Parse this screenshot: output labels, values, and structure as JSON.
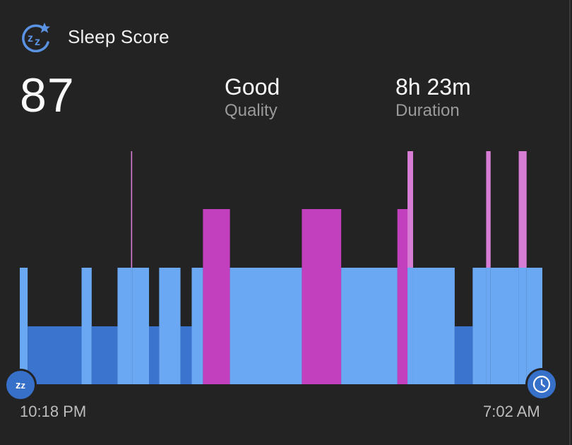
{
  "header": {
    "title": "Sleep Score",
    "icon": "sleep-zz-star-icon"
  },
  "score": "87",
  "metrics": [
    {
      "value": "Good",
      "label": "Quality"
    },
    {
      "value": "8h 23m",
      "label": "Duration"
    }
  ],
  "time_axis": {
    "start": "10:18 PM",
    "end": "7:02 AM"
  },
  "badges": {
    "start_icon": "zz-icon",
    "end_icon": "clock-icon"
  },
  "colors": {
    "background": "#232323",
    "deep": "#3a74ce",
    "light": "#6aa8f4",
    "rem": "#c23fbd",
    "awake": "#d77dd5"
  },
  "chart_data": {
    "type": "bar",
    "subtype": "hypnogram",
    "levels": [
      "deep",
      "light",
      "rem",
      "awake"
    ],
    "x_unit": "minutes since 10:18 PM",
    "xlim": [
      0,
      524
    ],
    "segments": [
      {
        "stage": "light",
        "start": 0,
        "end": 7
      },
      {
        "stage": "deep",
        "start": 7,
        "end": 55
      },
      {
        "stage": "light",
        "start": 55,
        "end": 64
      },
      {
        "stage": "deep",
        "start": 64,
        "end": 87
      },
      {
        "stage": "light",
        "start": 87,
        "end": 99
      },
      {
        "stage": "awake",
        "start": 99,
        "end": 100
      },
      {
        "stage": "light",
        "start": 100,
        "end": 115
      },
      {
        "stage": "deep",
        "start": 115,
        "end": 124
      },
      {
        "stage": "light",
        "start": 124,
        "end": 143
      },
      {
        "stage": "deep",
        "start": 143,
        "end": 153
      },
      {
        "stage": "light",
        "start": 153,
        "end": 163
      },
      {
        "stage": "rem",
        "start": 163,
        "end": 187
      },
      {
        "stage": "light",
        "start": 187,
        "end": 251
      },
      {
        "stage": "rem",
        "start": 251,
        "end": 286
      },
      {
        "stage": "light",
        "start": 286,
        "end": 336
      },
      {
        "stage": "rem",
        "start": 336,
        "end": 345
      },
      {
        "stage": "awake",
        "start": 345,
        "end": 350
      },
      {
        "stage": "light",
        "start": 350,
        "end": 387
      },
      {
        "stage": "deep",
        "start": 387,
        "end": 403
      },
      {
        "stage": "light",
        "start": 403,
        "end": 415
      },
      {
        "stage": "awake",
        "start": 415,
        "end": 419
      },
      {
        "stage": "light",
        "start": 419,
        "end": 444
      },
      {
        "stage": "awake",
        "start": 444,
        "end": 451
      },
      {
        "stage": "light",
        "start": 451,
        "end": 465
      }
    ]
  }
}
